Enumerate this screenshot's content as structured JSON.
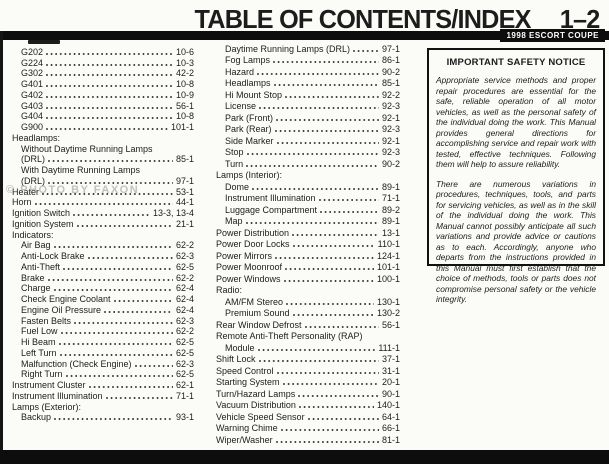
{
  "header": {
    "title": "TABLE OF CONTENTS/INDEX",
    "page_ref": "1–2",
    "model_badge": "1998 ESCORT COUPE"
  },
  "watermark": "© PHOTO BY FAXON",
  "toc": {
    "left": [
      {
        "label": "G202",
        "page": "10-6",
        "indent": 1
      },
      {
        "label": "G224",
        "page": "10-3",
        "indent": 1
      },
      {
        "label": "G302",
        "page": "42-2",
        "indent": 1
      },
      {
        "label": "G401",
        "page": "10-8",
        "indent": 1
      },
      {
        "label": "G402",
        "page": "10-9",
        "indent": 1
      },
      {
        "label": "G403",
        "page": "56-1",
        "indent": 1
      },
      {
        "label": "G404",
        "page": "10-8",
        "indent": 1
      },
      {
        "label": "G900",
        "page": "101-1",
        "indent": 1
      },
      {
        "label": "Headlamps:",
        "indent": 0
      },
      {
        "label": "Without Daytime Running Lamps",
        "indent": 1
      },
      {
        "label": "(DRL)",
        "page": "85-1",
        "indent": 1
      },
      {
        "label": "With Daytime Running Lamps",
        "indent": 1
      },
      {
        "label": "(DRL)",
        "page": "97-1",
        "indent": 1
      },
      {
        "label": "Heater",
        "page": "53-1",
        "indent": 0
      },
      {
        "label": "Horn",
        "page": "44-1",
        "indent": 0
      },
      {
        "label": "Ignition Switch",
        "page": "13-3, 13-4",
        "indent": 0
      },
      {
        "label": "Ignition System",
        "page": "21-1",
        "indent": 0
      },
      {
        "label": "Indicators:",
        "indent": 0
      },
      {
        "label": "Air Bag",
        "page": "62-2",
        "indent": 1
      },
      {
        "label": "Anti-Lock Brake",
        "page": "62-3",
        "indent": 1
      },
      {
        "label": "Anti-Theft",
        "page": "62-5",
        "indent": 1
      },
      {
        "label": "Brake",
        "page": "62-2",
        "indent": 1
      },
      {
        "label": "Charge",
        "page": "62-4",
        "indent": 1
      },
      {
        "label": "Check Engine Coolant",
        "page": "62-4",
        "indent": 1
      },
      {
        "label": "Engine Oil Pressure",
        "page": "62-4",
        "indent": 1
      },
      {
        "label": "Fasten Belts",
        "page": "62-3",
        "indent": 1
      },
      {
        "label": "Fuel Low",
        "page": "62-2",
        "indent": 1
      },
      {
        "label": "Hi Beam",
        "page": "62-5",
        "indent": 1
      },
      {
        "label": "Left Turn",
        "page": "62-5",
        "indent": 1
      },
      {
        "label": "Malfunction (Check Engine)",
        "page": "62-3",
        "indent": 1
      },
      {
        "label": "Right Turn",
        "page": "62-5",
        "indent": 1
      },
      {
        "label": "Instrument Cluster",
        "page": "62-1",
        "indent": 0
      },
      {
        "label": "Instrument Illumination",
        "page": "71-1",
        "indent": 0
      },
      {
        "label": "Lamps (Exterior):",
        "indent": 0
      },
      {
        "label": "Backup",
        "page": "93-1",
        "indent": 1
      }
    ],
    "middle": [
      {
        "label": "Daytime Running Lamps (DRL)",
        "page": "97-1",
        "indent": 1
      },
      {
        "label": "Fog Lamps",
        "page": "86-1",
        "indent": 1
      },
      {
        "label": "Hazard",
        "page": "90-2",
        "indent": 1
      },
      {
        "label": "Headlamps",
        "page": "85-1",
        "indent": 1
      },
      {
        "label": "Hi Mount Stop",
        "page": "92-2",
        "indent": 1
      },
      {
        "label": "License",
        "page": "92-3",
        "indent": 1
      },
      {
        "label": "Park (Front)",
        "page": "92-1",
        "indent": 1
      },
      {
        "label": "Park (Rear)",
        "page": "92-3",
        "indent": 1
      },
      {
        "label": "Side Marker",
        "page": "92-1",
        "indent": 1
      },
      {
        "label": "Stop",
        "page": "92-3",
        "indent": 1
      },
      {
        "label": "Turn",
        "page": "90-2",
        "indent": 1
      },
      {
        "label": "Lamps (Interior):",
        "indent": 0
      },
      {
        "label": "Dome",
        "page": "89-1",
        "indent": 1
      },
      {
        "label": "Instrument Illumination",
        "page": "71-1",
        "indent": 1
      },
      {
        "label": "Luggage Compartment",
        "page": "89-2",
        "indent": 1
      },
      {
        "label": "Map",
        "page": "89-1",
        "indent": 1
      },
      {
        "label": "Power Distribution",
        "page": "13-1",
        "indent": 0
      },
      {
        "label": "Power Door Locks",
        "page": "110-1",
        "indent": 0
      },
      {
        "label": "Power Mirrors",
        "page": "124-1",
        "indent": 0
      },
      {
        "label": "Power Moonroof",
        "page": "101-1",
        "indent": 0
      },
      {
        "label": "Power Windows",
        "page": "100-1",
        "indent": 0
      },
      {
        "label": "Radio:",
        "indent": 0
      },
      {
        "label": "AM/FM Stereo",
        "page": "130-1",
        "indent": 1
      },
      {
        "label": "Premium Sound",
        "page": "130-2",
        "indent": 1
      },
      {
        "label": "Rear Window Defrost",
        "page": "56-1",
        "indent": 0
      },
      {
        "label": "Remote Anti-Theft Personality (RAP)",
        "indent": 0
      },
      {
        "label": "Module",
        "page": "111-1",
        "indent": 1
      },
      {
        "label": "Shift Lock",
        "page": "37-1",
        "indent": 0
      },
      {
        "label": "Speed Control",
        "page": "31-1",
        "indent": 0
      },
      {
        "label": "Starting System",
        "page": "20-1",
        "indent": 0
      },
      {
        "label": "Turn/Hazard Lamps",
        "page": "90-1",
        "indent": 0
      },
      {
        "label": "Vacuum Distribution",
        "page": "140-1",
        "indent": 0
      },
      {
        "label": "Vehicle Speed Sensor",
        "page": "64-1",
        "indent": 0
      },
      {
        "label": "Warning Chime",
        "page": "66-1",
        "indent": 0
      },
      {
        "label": "Wiper/Washer",
        "page": "81-1",
        "indent": 0
      }
    ]
  },
  "notice": {
    "title": "IMPORTANT SAFETY NOTICE",
    "paragraphs": [
      "Appropriate service methods and proper repair procedures are essential for the safe, reliable operation of all motor vehicles, as well as the personal safety of the individual doing the work. This Manual provides general directions for accomplishing service and repair work with tested, effective techniques. Following them will help to assure reliability.",
      "There are numerous variations in procedures, techniques, tools, and parts for servicing vehicles, as well as in the skill of the individual doing the work. This Manual cannot possibly anticipate all such variations and provide advice or cautions as to each. Accordingly, anyone who departs from the instructions provided in this Manual must first establish that the choice of methods, tools or parts does not compromise personal safety or the vehicle integrity."
    ]
  }
}
